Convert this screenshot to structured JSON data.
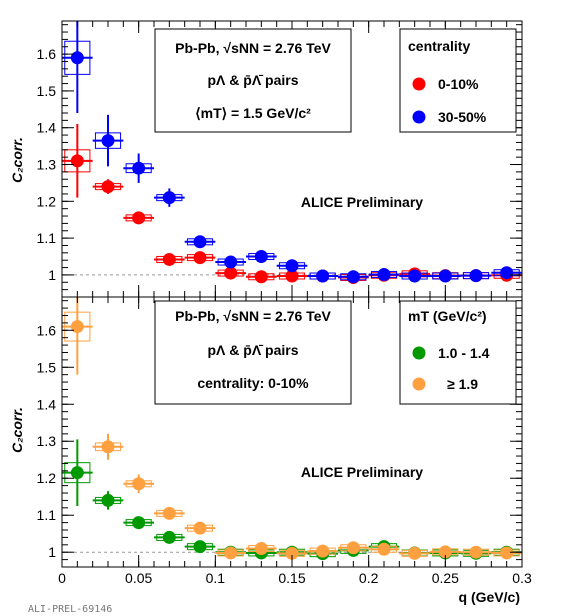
{
  "chart_data": [
    {
      "type": "scatter",
      "panel": "top",
      "xlim": [
        0,
        0.3
      ],
      "ylim": [
        0.94,
        1.69
      ],
      "ylabel": "C₂corr.",
      "yticks": [
        "1",
        "1.1",
        "1.2",
        "1.3",
        "1.4",
        "1.5",
        "1.6"
      ],
      "yticks_values": [
        1,
        1.1,
        1.2,
        1.3,
        1.4,
        1.5,
        1.6
      ],
      "reference_line": 1,
      "info_lines": [
        "Pb-Pb, √sNN = 2.76 TeV",
        "pΛ & p̄Λ̄ pairs",
        "⟨mT⟩ = 1.5 GeV/c²"
      ],
      "legend_title": "centrality",
      "legend_placement": "top-right",
      "annotation": "ALICE Preliminary",
      "series": [
        {
          "name": "0-10%",
          "color": "#ff0000",
          "x": [
            0.01,
            0.03,
            0.05,
            0.07,
            0.09,
            0.11,
            0.13,
            0.15,
            0.17,
            0.19,
            0.21,
            0.23,
            0.25,
            0.27,
            0.29
          ],
          "y": [
            1.31,
            1.24,
            1.155,
            1.042,
            1.047,
            1.005,
            0.995,
            0.997,
            0.997,
            0.993,
            0.999,
            1.003,
            0.998,
            0.998,
            0.999
          ],
          "yerr": [
            0.1,
            0.02,
            0.01,
            0.008,
            0.008,
            0.006,
            0.006,
            0.005,
            0.005,
            0.005,
            0.005,
            0.005,
            0.005,
            0.005,
            0.005
          ]
        },
        {
          "name": "30-50%",
          "color": "#0000ff",
          "x": [
            0.01,
            0.03,
            0.05,
            0.07,
            0.09,
            0.11,
            0.13,
            0.15,
            0.17,
            0.19,
            0.21,
            0.23,
            0.25,
            0.27,
            0.29
          ],
          "y": [
            1.59,
            1.365,
            1.29,
            1.21,
            1.09,
            1.035,
            1.05,
            1.025,
            0.997,
            0.995,
            1.001,
            0.997,
            0.997,
            0.998,
            1.006
          ],
          "yerr": [
            0.15,
            0.07,
            0.04,
            0.025,
            0.015,
            0.01,
            0.008,
            0.008,
            0.007,
            0.007,
            0.007,
            0.007,
            0.007,
            0.007,
            0.007
          ]
        }
      ]
    },
    {
      "type": "scatter",
      "panel": "bottom",
      "xlim": [
        0,
        0.3
      ],
      "ylim": [
        0.96,
        1.69
      ],
      "xlabel": "q (GeV/c)",
      "ylabel": "C₂corr.",
      "xticks": [
        "0",
        "0.05",
        "0.1",
        "0.15",
        "0.2",
        "0.25",
        "0.3"
      ],
      "xticks_values": [
        0,
        0.05,
        0.1,
        0.15,
        0.2,
        0.25,
        0.3
      ],
      "yticks": [
        "1",
        "1.1",
        "1.2",
        "1.3",
        "1.4",
        "1.5",
        "1.6"
      ],
      "yticks_values": [
        1,
        1.1,
        1.2,
        1.3,
        1.4,
        1.5,
        1.6
      ],
      "reference_line": 1,
      "info_lines": [
        "Pb-Pb, √sNN = 2.76 TeV",
        "pΛ & p̄Λ̄ pairs",
        "centrality: 0-10%"
      ],
      "legend_title": "mT (GeV/c²)",
      "legend_placement": "top-right",
      "annotation": "ALICE Preliminary",
      "series": [
        {
          "name": "1.0 - 1.4",
          "color": "#009900",
          "x": [
            0.01,
            0.03,
            0.05,
            0.07,
            0.09,
            0.11,
            0.13,
            0.15,
            0.17,
            0.19,
            0.21,
            0.23,
            0.25,
            0.27,
            0.29
          ],
          "y": [
            1.215,
            1.14,
            1.08,
            1.04,
            1.015,
            1.0,
            0.998,
            1.0,
            0.996,
            1.005,
            1.015,
            0.998,
            0.998,
            0.997,
            1.0
          ],
          "yerr": [
            0.09,
            0.025,
            0.012,
            0.008,
            0.007,
            0.006,
            0.006,
            0.006,
            0.006,
            0.006,
            0.006,
            0.006,
            0.006,
            0.006,
            0.006
          ]
        },
        {
          "name": "≥ 1.9",
          "color": "#ffa040",
          "x": [
            0.01,
            0.03,
            0.05,
            0.07,
            0.09,
            0.11,
            0.13,
            0.15,
            0.17,
            0.19,
            0.21,
            0.23,
            0.25,
            0.27,
            0.29
          ],
          "y": [
            1.61,
            1.285,
            1.185,
            1.105,
            1.065,
            0.998,
            1.01,
            0.997,
            1.003,
            1.012,
            1.008,
            0.997,
            1.001,
            1.0,
            0.998
          ],
          "yerr": [
            0.13,
            0.035,
            0.025,
            0.012,
            0.01,
            0.008,
            0.008,
            0.008,
            0.008,
            0.008,
            0.008,
            0.008,
            0.008,
            0.008,
            0.008
          ]
        }
      ]
    }
  ],
  "footer_label": "ALI-PREL-69146"
}
